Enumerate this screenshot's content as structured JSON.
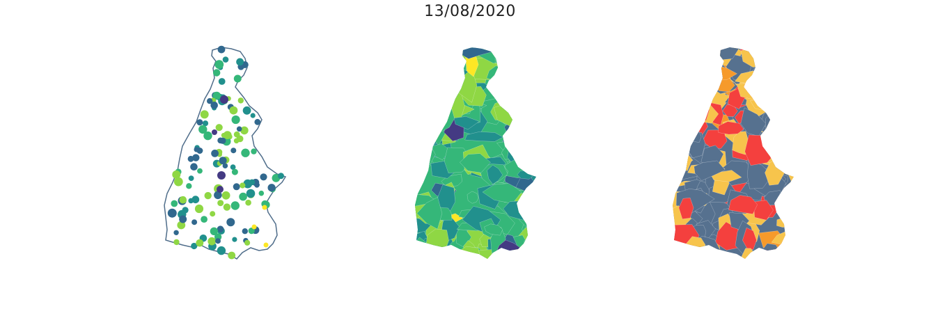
{
  "header": {
    "date": "13/08/2020"
  },
  "colors": {
    "outline": "#4f6d8a",
    "viridis": [
      "#443a83",
      "#31688e",
      "#21908d",
      "#35b779",
      "#8fd744",
      "#fde725"
    ],
    "categories": [
      "#56718f",
      "#f7c44c",
      "#f69a2b",
      "#f4403e"
    ]
  }
}
